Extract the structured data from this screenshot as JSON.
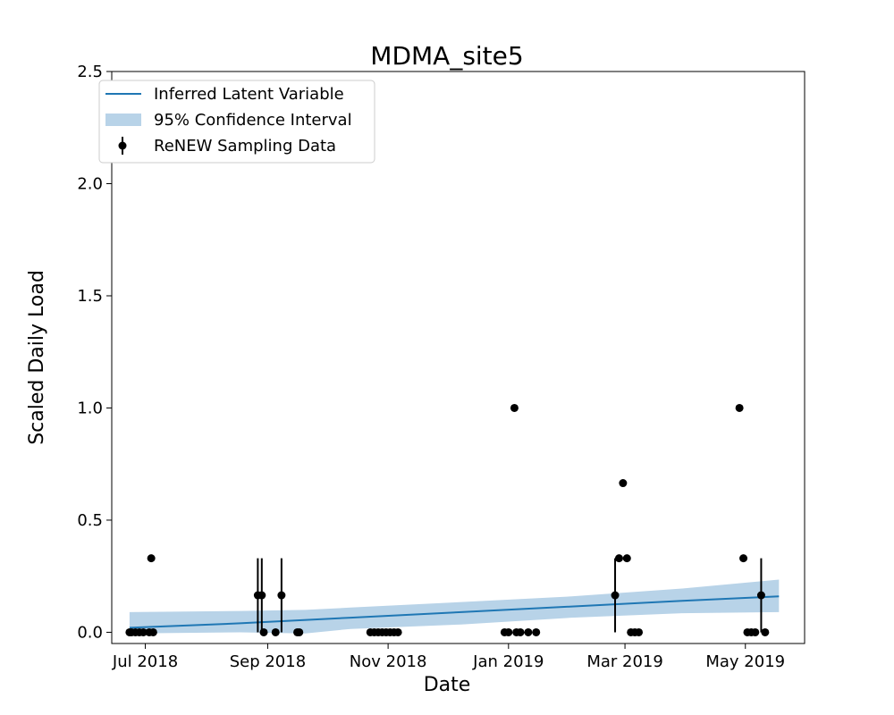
{
  "chart_data": {
    "type": "scatter",
    "title": "MDMA_site5",
    "xlabel": "Date",
    "ylabel": "Scaled Daily Load",
    "xlim": [
      "2018-06-14",
      "2019-05-31"
    ],
    "ylim": [
      -0.05,
      2.5
    ],
    "x_ticks": [
      {
        "date": "2018-07-01",
        "label": "Jul 2018"
      },
      {
        "date": "2018-09-01",
        "label": "Sep 2018"
      },
      {
        "date": "2018-11-01",
        "label": "Nov 2018"
      },
      {
        "date": "2019-01-01",
        "label": "Jan 2019"
      },
      {
        "date": "2019-03-01",
        "label": "Mar 2019"
      },
      {
        "date": "2019-05-01",
        "label": "May 2019"
      }
    ],
    "y_ticks": [
      "0.0",
      "0.5",
      "1.0",
      "1.5",
      "2.0",
      "2.5"
    ],
    "grid": false,
    "legend": {
      "position": "top-left",
      "entries": [
        "Inferred Latent Variable",
        "95% Confidence Interval",
        "ReNEW Sampling Data"
      ]
    },
    "colors": {
      "line": "#1f77b4",
      "band": "#b8d3e8",
      "points": "#000000"
    },
    "latent_line": {
      "x": [
        "2018-06-23",
        "2018-08-18",
        "2018-10-13",
        "2018-12-08",
        "2019-02-02",
        "2019-03-30",
        "2019-05-18"
      ],
      "y": [
        0.02,
        0.04,
        0.065,
        0.09,
        0.115,
        0.14,
        0.16
      ]
    },
    "confidence_band": {
      "x": [
        "2018-06-23",
        "2018-08-18",
        "2018-09-20",
        "2018-10-13",
        "2018-12-08",
        "2019-02-02",
        "2019-03-30",
        "2019-05-18"
      ],
      "upper": [
        0.09,
        0.095,
        0.1,
        0.11,
        0.135,
        0.16,
        0.195,
        0.235
      ],
      "lower": [
        -0.005,
        0.0,
        -0.005,
        0.015,
        0.035,
        0.065,
        0.085,
        0.09
      ]
    },
    "points": [
      {
        "x": "2018-06-23",
        "y": 0.0
      },
      {
        "x": "2018-06-24",
        "y": 0.0
      },
      {
        "x": "2018-06-26",
        "y": 0.0
      },
      {
        "x": "2018-06-28",
        "y": 0.0
      },
      {
        "x": "2018-06-30",
        "y": 0.0
      },
      {
        "x": "2018-07-03",
        "y": 0.0
      },
      {
        "x": "2018-07-05",
        "y": 0.0
      },
      {
        "x": "2018-07-04",
        "y": 0.33
      },
      {
        "x": "2018-08-27",
        "y": 0.165,
        "err_low": 0.0,
        "err_high": 0.33
      },
      {
        "x": "2018-08-29",
        "y": 0.165,
        "err_low": 0.0,
        "err_high": 0.33
      },
      {
        "x": "2018-08-30",
        "y": 0.0
      },
      {
        "x": "2018-09-05",
        "y": 0.0
      },
      {
        "x": "2018-09-08",
        "y": 0.165,
        "err_low": 0.0,
        "err_high": 0.33
      },
      {
        "x": "2018-09-16",
        "y": 0.0
      },
      {
        "x": "2018-09-17",
        "y": 0.0
      },
      {
        "x": "2018-10-23",
        "y": 0.0
      },
      {
        "x": "2018-10-25",
        "y": 0.0
      },
      {
        "x": "2018-10-27",
        "y": 0.0
      },
      {
        "x": "2018-10-29",
        "y": 0.0
      },
      {
        "x": "2018-10-31",
        "y": 0.0
      },
      {
        "x": "2018-11-02",
        "y": 0.0
      },
      {
        "x": "2018-11-04",
        "y": 0.0
      },
      {
        "x": "2018-11-06",
        "y": 0.0
      },
      {
        "x": "2018-12-30",
        "y": 0.0
      },
      {
        "x": "2019-01-01",
        "y": 0.0
      },
      {
        "x": "2019-01-05",
        "y": 0.0
      },
      {
        "x": "2019-01-07",
        "y": 0.0
      },
      {
        "x": "2019-01-11",
        "y": 0.0
      },
      {
        "x": "2019-01-15",
        "y": 0.0
      },
      {
        "x": "2019-01-04",
        "y": 1.0
      },
      {
        "x": "2019-02-24",
        "y": 0.165,
        "err_low": 0.0,
        "err_high": 0.33
      },
      {
        "x": "2019-02-26",
        "y": 0.33
      },
      {
        "x": "2019-02-28",
        "y": 0.665
      },
      {
        "x": "2019-03-02",
        "y": 0.33
      },
      {
        "x": "2019-03-04",
        "y": 0.0
      },
      {
        "x": "2019-03-06",
        "y": 0.0
      },
      {
        "x": "2019-03-08",
        "y": 0.0
      },
      {
        "x": "2019-04-28",
        "y": 1.0
      },
      {
        "x": "2019-04-30",
        "y": 0.33
      },
      {
        "x": "2019-05-02",
        "y": 0.0
      },
      {
        "x": "2019-05-04",
        "y": 0.0
      },
      {
        "x": "2019-05-06",
        "y": 0.0
      },
      {
        "x": "2019-05-09",
        "y": 0.165,
        "err_low": 0.0,
        "err_high": 0.33
      },
      {
        "x": "2019-05-11",
        "y": 0.0
      }
    ]
  }
}
